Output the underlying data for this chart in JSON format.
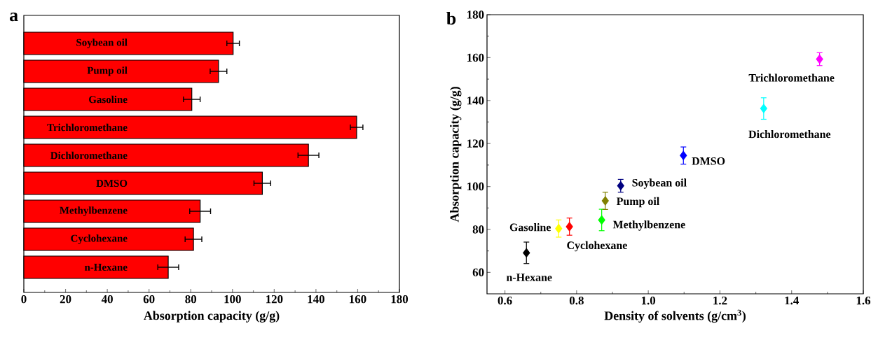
{
  "chart_data": [
    {
      "type": "bar",
      "title": "a",
      "orientation": "horizontal",
      "color": "#ff0000",
      "categories": [
        "Soybean oil",
        "Pump oil",
        "Gasoline",
        "Trichloromethane",
        "Dichloromethane",
        "DMSO",
        "Methylbenzene",
        "Cyclohexane",
        "n-Hexane"
      ],
      "values": [
        100.3,
        93.3,
        80.5,
        159.5,
        136.4,
        114.3,
        84.5,
        81.3,
        69.2
      ],
      "errors": [
        3,
        4,
        4,
        3,
        5,
        4,
        5,
        4,
        5
      ],
      "xlim": [
        0,
        180
      ],
      "xticks": [
        0,
        20,
        40,
        60,
        80,
        100,
        120,
        140,
        160,
        180
      ],
      "xlabel": "Absorption capacity (g/g)"
    },
    {
      "type": "scatter",
      "title": "b",
      "marker": "diamond",
      "x": [
        0.66,
        0.75,
        0.78,
        0.87,
        0.88,
        0.923,
        1.098,
        1.322,
        1.478
      ],
      "values": [
        69.1,
        80.4,
        81.3,
        84.4,
        93.3,
        100.3,
        114.4,
        136.3,
        159.3
      ],
      "errors": [
        5,
        4,
        4,
        5,
        4,
        3,
        4,
        5,
        3
      ],
      "colors": [
        "#000000",
        "#ffff00",
        "#ff0000",
        "#00ff00",
        "#808000",
        "#000080",
        "#0000ff",
        "#00ffff",
        "#ff00ff"
      ],
      "xlim": [
        0.55,
        1.6
      ],
      "xticks": [
        0.6,
        0.8,
        {
          "value": 1.0,
          "label": "1.0"
        },
        1.2,
        1.4,
        1.6
      ],
      "ylim": [
        50,
        180
      ],
      "yticks": [
        60,
        80,
        100,
        120,
        140,
        160,
        180
      ],
      "xlabel": "Density of solvents (g/cm$^{3}$)",
      "ylabel": "Absorption capacity (g/g)",
      "annotations": [
        {
          "text": "n-Hexane",
          "x": 0.66,
          "y": 69.1
        },
        {
          "text": "Gasoline",
          "x": 0.75,
          "y": 80.4
        },
        {
          "text": "Cyclohexane",
          "x": 0.78,
          "y": 81.3
        },
        {
          "text": "Methylbenzene",
          "x": 0.87,
          "y": 84.4
        },
        {
          "text": "Pump oil",
          "x": 0.88,
          "y": 93.3
        },
        {
          "text": "Soybean oil",
          "x": 0.923,
          "y": 100.3
        },
        {
          "text": "DMSO",
          "x": 1.098,
          "y": 114.4
        },
        {
          "text": "Dichloromethane",
          "x": 1.322,
          "y": 136.3
        },
        {
          "text": "Trichloromethane",
          "x": 1.478,
          "y": 159.3
        }
      ]
    }
  ]
}
